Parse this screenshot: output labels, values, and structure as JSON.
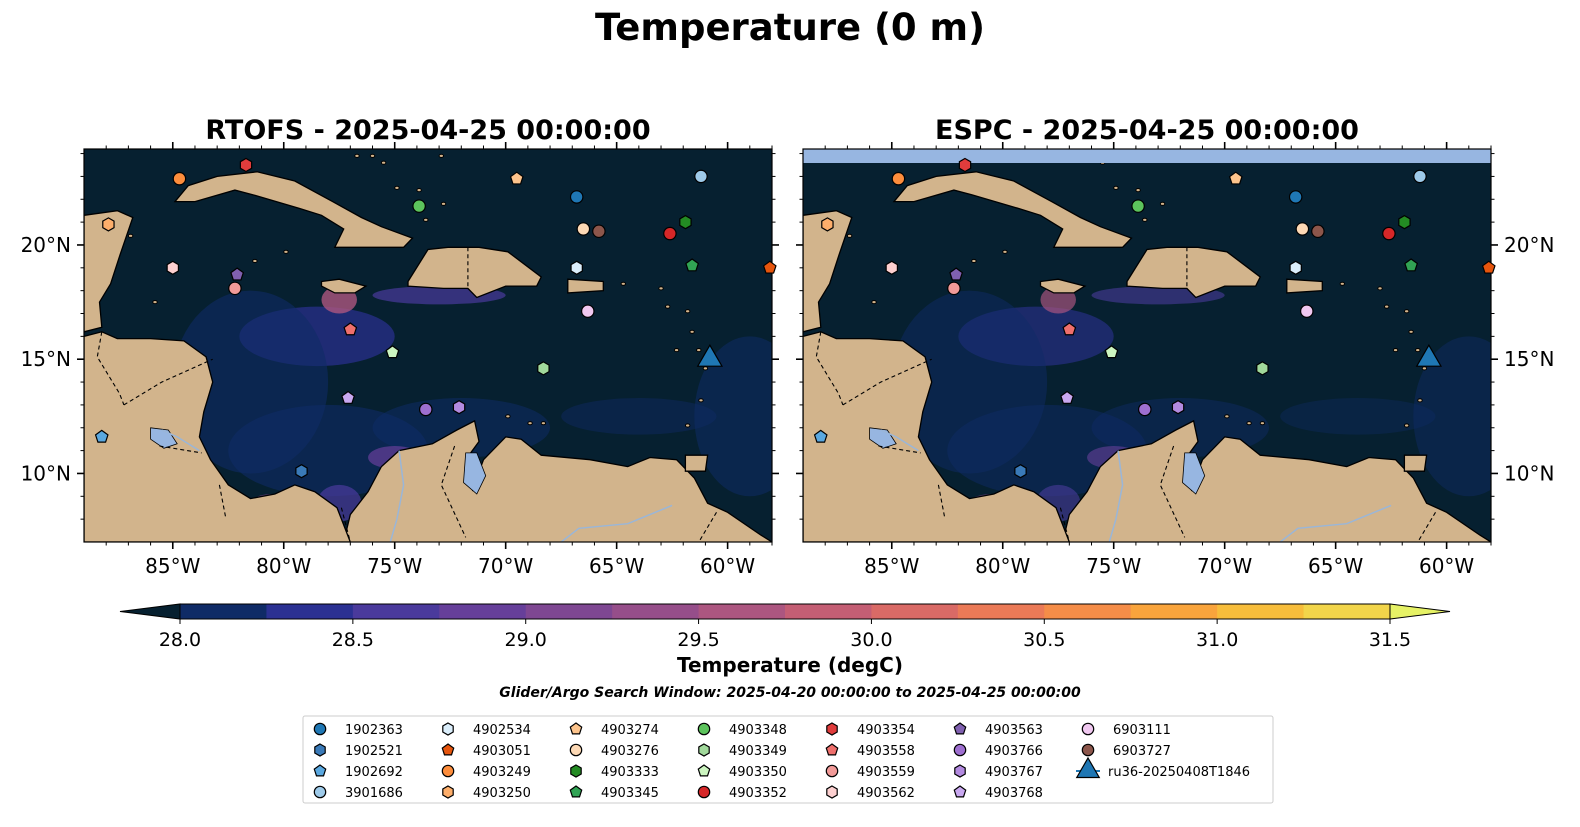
{
  "title": "Temperature (0 m)",
  "panels": [
    {
      "title": "RTOFS - 2025-04-25 00:00:00"
    },
    {
      "title": "ESPC - 2025-04-25 00:00:00"
    }
  ],
  "map": {
    "lon_range": [
      -89,
      -58
    ],
    "lat_range": [
      7,
      24.2
    ],
    "lon_ticks": [
      {
        "value": -85,
        "label": "85°W"
      },
      {
        "value": -80,
        "label": "80°W"
      },
      {
        "value": -75,
        "label": "75°W"
      },
      {
        "value": -70,
        "label": "70°W"
      },
      {
        "value": -65,
        "label": "65°W"
      },
      {
        "value": -60,
        "label": "60°W"
      }
    ],
    "lat_ticks": [
      {
        "value": 20,
        "label": "20°N"
      },
      {
        "value": 15,
        "label": "15°N"
      },
      {
        "value": 10,
        "label": "10°N"
      }
    ],
    "ocean_color": "#062030",
    "land_color": "#d2b48c",
    "lake_color": "#97b6e1"
  },
  "colorbar": {
    "title": "Temperature (degC)",
    "ticks": [
      "28.0",
      "28.5",
      "29.0",
      "29.5",
      "30.0",
      "30.5",
      "31.0",
      "31.5"
    ],
    "colors": [
      "#062030",
      "#0f2b66",
      "#2b3192",
      "#4a3a9c",
      "#663f9a",
      "#7e4792",
      "#964e8a",
      "#ac5680",
      "#c45e74",
      "#d96a66",
      "#eb7a57",
      "#f58d48",
      "#f9a43c",
      "#f7bd3b",
      "#f2d54a",
      "#e6f266"
    ]
  },
  "search_window": "Glider/Argo Search Window: 2025-04-20 00:00:00 to 2025-04-25 00:00:00",
  "legend": [
    {
      "id": "1902363",
      "marker": "circle",
      "color": "#1f77b4"
    },
    {
      "id": "1902521",
      "marker": "hexagon",
      "color": "#3a7ab8"
    },
    {
      "id": "1902692",
      "marker": "pentagon",
      "color": "#5aa8e0"
    },
    {
      "id": "3901686",
      "marker": "circle",
      "color": "#9ecae9"
    },
    {
      "id": "4902534",
      "marker": "hexagon",
      "color": "#dbeefb"
    },
    {
      "id": "4903051",
      "marker": "pentagon",
      "color": "#e6550d"
    },
    {
      "id": "4903249",
      "marker": "circle",
      "color": "#fd8d3c"
    },
    {
      "id": "4903250",
      "marker": "hexagon",
      "color": "#fdae6b"
    },
    {
      "id": "4903274",
      "marker": "pentagon",
      "color": "#fdc48c"
    },
    {
      "id": "4903276",
      "marker": "circle",
      "color": "#fdd9b5"
    },
    {
      "id": "4903333",
      "marker": "hexagon",
      "color": "#238b23"
    },
    {
      "id": "4903345",
      "marker": "pentagon",
      "color": "#31a354"
    },
    {
      "id": "4903348",
      "marker": "circle",
      "color": "#5cc35c"
    },
    {
      "id": "4903349",
      "marker": "hexagon",
      "color": "#a1d99b"
    },
    {
      "id": "4903350",
      "marker": "pentagon",
      "color": "#ccf5c0"
    },
    {
      "id": "4903352",
      "marker": "circle",
      "color": "#d62728"
    },
    {
      "id": "4903354",
      "marker": "hexagon",
      "color": "#e03c3c"
    },
    {
      "id": "4903558",
      "marker": "pentagon",
      "color": "#ef6f6c"
    },
    {
      "id": "4903559",
      "marker": "circle",
      "color": "#f29a98"
    },
    {
      "id": "4903562",
      "marker": "hexagon",
      "color": "#fdd0d0"
    },
    {
      "id": "4903563",
      "marker": "pentagon",
      "color": "#8060b0"
    },
    {
      "id": "4903766",
      "marker": "circle",
      "color": "#9e6fd0"
    },
    {
      "id": "4903767",
      "marker": "hexagon",
      "color": "#b38ae0"
    },
    {
      "id": "4903768",
      "marker": "pentagon",
      "color": "#c9a8f0"
    },
    {
      "id": "6903111",
      "marker": "circle",
      "color": "#f0c8f0"
    },
    {
      "id": "6903727",
      "marker": "circle",
      "color": "#8c564b"
    },
    {
      "id": "ru36-20250408T1846",
      "marker": "triangle",
      "color": "#1f77b4"
    }
  ],
  "observations": [
    {
      "id": "4903249",
      "lon": -84.7,
      "lat": 22.9
    },
    {
      "id": "4903354",
      "lon": -81.7,
      "lat": 23.5
    },
    {
      "id": "4903274",
      "lon": -69.5,
      "lat": 22.9
    },
    {
      "id": "3901686",
      "lon": -61.2,
      "lat": 23.0
    },
    {
      "id": "1902363",
      "lon": -66.8,
      "lat": 22.1
    },
    {
      "id": "4903348",
      "lon": -73.9,
      "lat": 21.7
    },
    {
      "id": "4903250",
      "lon": -87.9,
      "lat": 20.9
    },
    {
      "id": "4903276",
      "lon": -66.5,
      "lat": 20.7
    },
    {
      "id": "6903727",
      "lon": -65.8,
      "lat": 20.6
    },
    {
      "id": "4903352",
      "lon": -62.6,
      "lat": 20.5
    },
    {
      "id": "4903333",
      "lon": -61.9,
      "lat": 21.0
    },
    {
      "id": "4903345",
      "lon": -61.6,
      "lat": 19.1
    },
    {
      "id": "4903051",
      "lon": -58.1,
      "lat": 19.0
    },
    {
      "id": "4903562",
      "lon": -85.0,
      "lat": 19.0
    },
    {
      "id": "4903563",
      "lon": -82.1,
      "lat": 18.7
    },
    {
      "id": "4903559",
      "lon": -82.2,
      "lat": 18.1
    },
    {
      "id": "4902534",
      "lon": -66.8,
      "lat": 19.0
    },
    {
      "id": "6903111",
      "lon": -66.3,
      "lat": 17.1
    },
    {
      "id": "4903558",
      "lon": -77.0,
      "lat": 16.3
    },
    {
      "id": "4903350",
      "lon": -75.1,
      "lat": 15.3
    },
    {
      "id": "4903349",
      "lon": -68.3,
      "lat": 14.6
    },
    {
      "id": "4903767",
      "lon": -72.1,
      "lat": 12.9
    },
    {
      "id": "4903766",
      "lon": -73.6,
      "lat": 12.8
    },
    {
      "id": "4903768",
      "lon": -77.1,
      "lat": 13.3
    },
    {
      "id": "1902692",
      "lon": -88.2,
      "lat": 11.6
    },
    {
      "id": "1902521",
      "lon": -79.2,
      "lat": 10.1
    },
    {
      "id": "ru36-20250408T1846",
      "lon": -60.8,
      "lat": 15.0
    }
  ]
}
